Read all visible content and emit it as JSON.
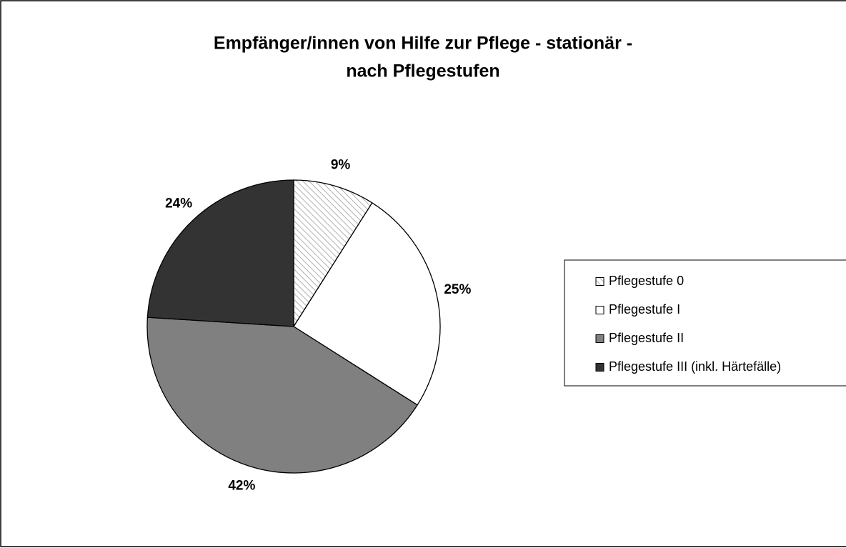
{
  "chart_data": {
    "type": "pie",
    "title": [
      "Empfänger/innen von Hilfe zur Pflege - stationär -",
      "nach Pflegestufen"
    ],
    "categories": [
      "Pflegestufe 0",
      "Pflegestufe I",
      "Pflegestufe II",
      "Pflegestufe III (inkl. Härtefälle)"
    ],
    "values": [
      9,
      25,
      42,
      24
    ],
    "value_labels": [
      "9%",
      "25%",
      "42%",
      "24%"
    ],
    "colors": [
      "#c8c8c8",
      "#ffffff",
      "#808080",
      "#333333"
    ],
    "hatched": [
      true,
      false,
      false,
      false
    ],
    "legend": "right"
  }
}
